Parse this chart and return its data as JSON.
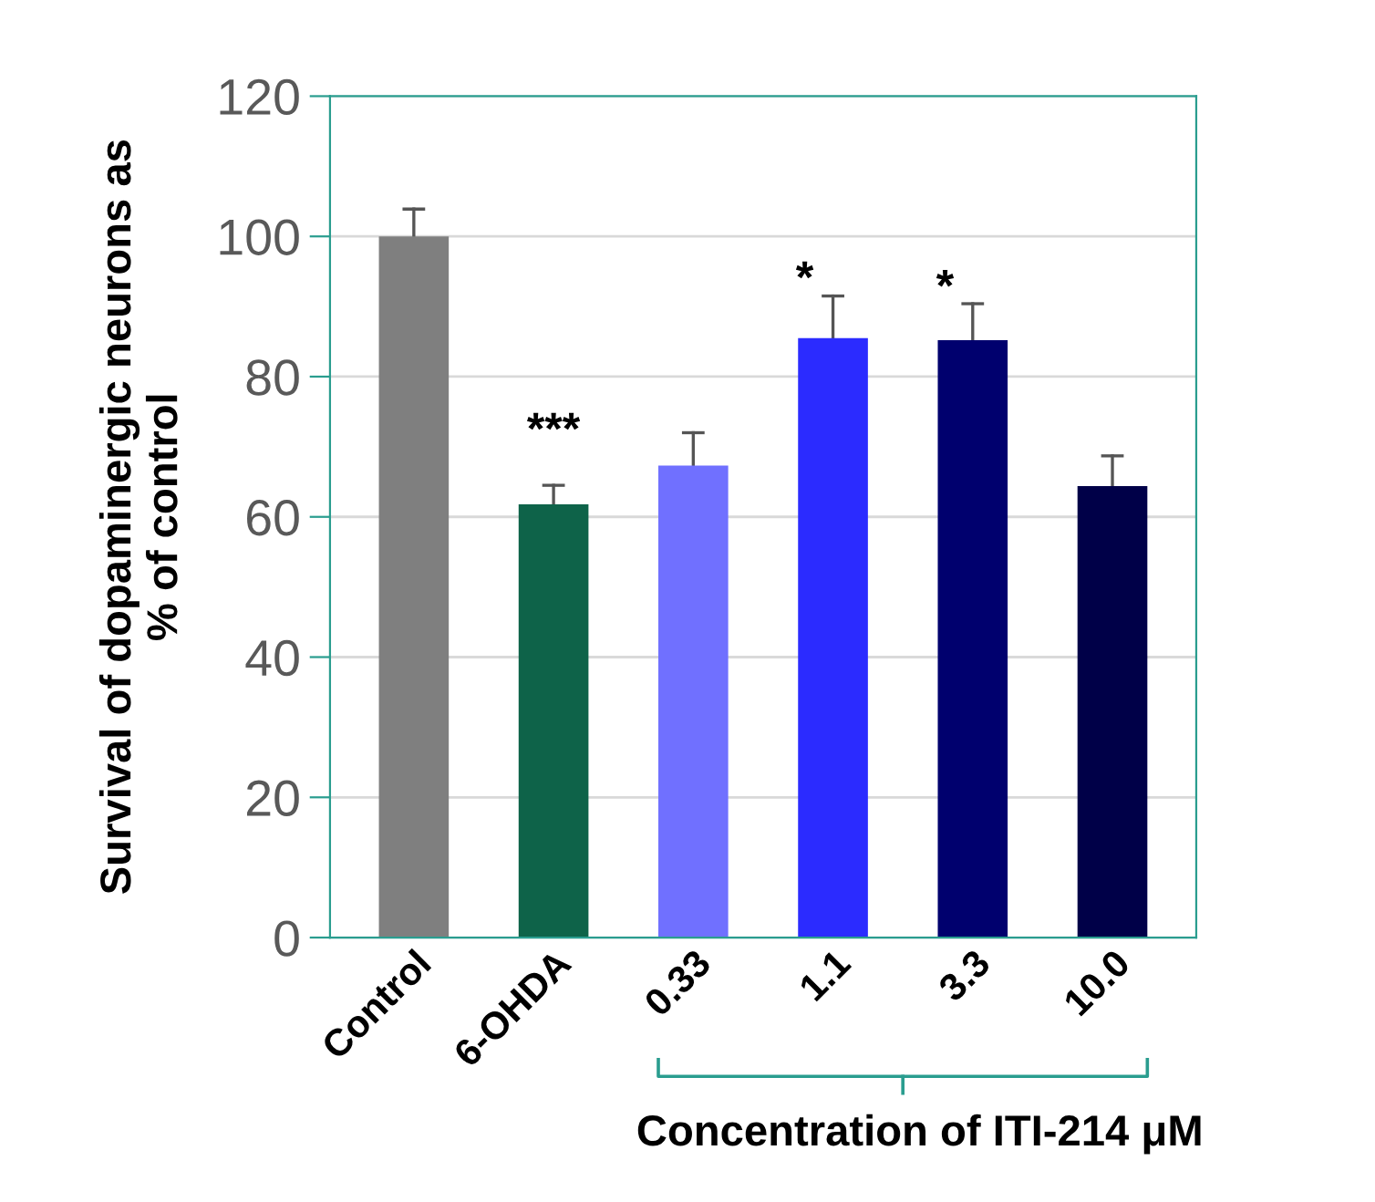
{
  "chart_data": {
    "type": "bar",
    "ylabel": "Survival of dopaminergic neurons as\n% of control",
    "xlabel": "Concentration of ITI-214 μM",
    "categories": [
      "Control",
      "6-OHDA",
      "0.33",
      "1.1",
      "3.3",
      "10.0"
    ],
    "values": [
      100,
      61.8,
      67.3,
      85.5,
      85.2,
      64.4
    ],
    "colors": [
      "#7f7f7f",
      "#0e6349",
      "#7070ff",
      "#2b2bff",
      "#00006e",
      "#000048"
    ],
    "errors": [
      [
        100,
        103.9
      ],
      [
        61.8,
        64.5
      ],
      [
        67.3,
        72
      ],
      [
        85.5,
        91.5
      ],
      [
        85.2,
        90.4
      ],
      [
        64.4,
        68.7
      ]
    ],
    "annotations": [
      "***",
      "*",
      "*"
    ],
    "ylim": [
      0,
      120
    ],
    "yticks": [
      0,
      20,
      40,
      60,
      80,
      100,
      120
    ],
    "grid": "y"
  }
}
